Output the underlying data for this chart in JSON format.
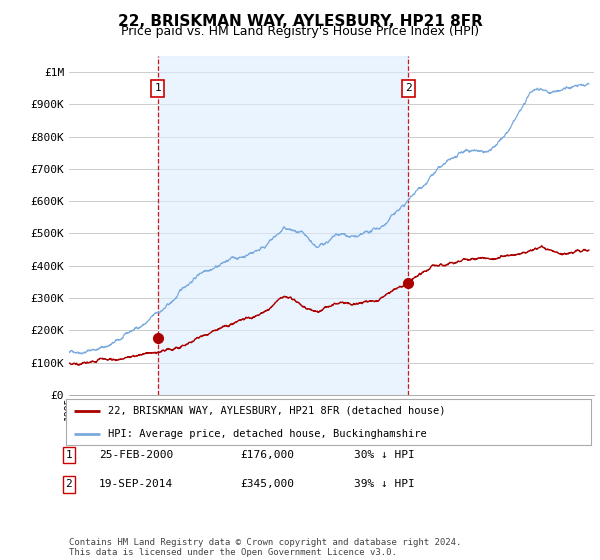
{
  "title": "22, BRISKMAN WAY, AYLESBURY, HP21 8FR",
  "subtitle": "Price paid vs. HM Land Registry's House Price Index (HPI)",
  "title_fontsize": 11,
  "subtitle_fontsize": 9,
  "background_color": "#ffffff",
  "grid_color": "#cccccc",
  "hpi_color": "#7aaadd",
  "hpi_fill_color": "#ddeeff",
  "price_color": "#aa0000",
  "dashed_color": "#cc0000",
  "legend_label_price": "22, BRISKMAN WAY, AYLESBURY, HP21 8FR (detached house)",
  "legend_label_hpi": "HPI: Average price, detached house, Buckinghamshire",
  "transaction1_date": "25-FEB-2000",
  "transaction1_price": "£176,000",
  "transaction1_hpi": "30% ↓ HPI",
  "transaction1_x": 2000.15,
  "transaction1_y": 176000,
  "transaction2_date": "19-SEP-2014",
  "transaction2_price": "£345,000",
  "transaction2_hpi": "39% ↓ HPI",
  "transaction2_x": 2014.72,
  "transaction2_y": 345000,
  "footer_text": "Contains HM Land Registry data © Crown copyright and database right 2024.\nThis data is licensed under the Open Government Licence v3.0.",
  "ylim": [
    0,
    1050000
  ],
  "xlim": [
    1995.0,
    2025.5
  ]
}
